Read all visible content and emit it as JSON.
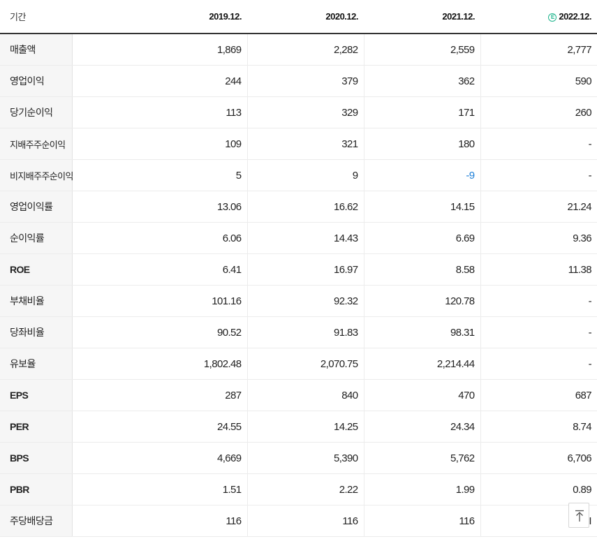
{
  "header": {
    "label": "기간",
    "years": [
      "2019.12.",
      "2020.12.",
      "2021.12.",
      "2022.12."
    ],
    "estimate_icon": "e-estimate-icon",
    "estimate_mark": "E"
  },
  "rows": [
    {
      "label": "매출액",
      "values": [
        "1,869",
        "2,282",
        "2,559",
        "2,777"
      ]
    },
    {
      "label": "영업이익",
      "values": [
        "244",
        "379",
        "362",
        "590"
      ]
    },
    {
      "label": "당기순이익",
      "values": [
        "113",
        "329",
        "171",
        "260"
      ]
    },
    {
      "label": "지배주주순이익",
      "values": [
        "109",
        "321",
        "180",
        "-"
      ]
    },
    {
      "label": "비지배주주순이익",
      "values": [
        "5",
        "9",
        "-9",
        "-"
      ]
    },
    {
      "label": "영업이익률",
      "values": [
        "13.06",
        "16.62",
        "14.15",
        "21.24"
      ]
    },
    {
      "label": "순이익률",
      "values": [
        "6.06",
        "14.43",
        "6.69",
        "9.36"
      ]
    },
    {
      "label": "ROE",
      "values": [
        "6.41",
        "16.97",
        "8.58",
        "11.38"
      ]
    },
    {
      "label": "부채비율",
      "values": [
        "101.16",
        "92.32",
        "120.78",
        "-"
      ]
    },
    {
      "label": "당좌비율",
      "values": [
        "90.52",
        "91.83",
        "98.31",
        "-"
      ]
    },
    {
      "label": "유보율",
      "values": [
        "1,802.48",
        "2,070.75",
        "2,214.44",
        "-"
      ]
    },
    {
      "label": "EPS",
      "values": [
        "287",
        "840",
        "470",
        "687"
      ]
    },
    {
      "label": "PER",
      "values": [
        "24.55",
        "14.25",
        "24.34",
        "8.74"
      ]
    },
    {
      "label": "BPS",
      "values": [
        "4,669",
        "5,390",
        "5,762",
        "6,706"
      ]
    },
    {
      "label": "PBR",
      "values": [
        "1.51",
        "2.22",
        "1.99",
        "0.89"
      ]
    },
    {
      "label": "주당배당금",
      "values": [
        "116",
        "116",
        "116",
        "I"
      ]
    }
  ],
  "colors": {
    "estimate": "#1fb58d",
    "negative": "#1d7fd8",
    "label_bg": "#f6f6f6"
  },
  "scroll_top_icon": "arrow-up-to-top-icon"
}
